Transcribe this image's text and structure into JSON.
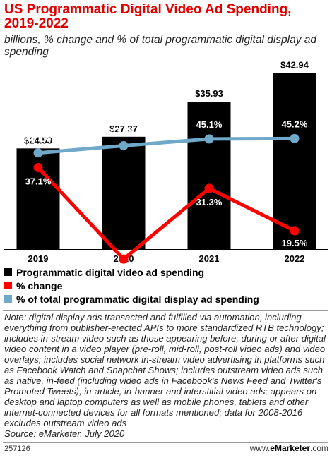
{
  "chart_data": {
    "type": "bar",
    "title": "US Programmatic Digital Video Ad Spending, 2019-2022",
    "subtitle": "billions, % change and % of total programmatic digital display ad spending",
    "categories": [
      "2019",
      "2020",
      "2021",
      "2022"
    ],
    "series": [
      {
        "name": "Programmatic digital video ad spending",
        "kind": "bar",
        "values": [
          24.53,
          27.37,
          35.93,
          42.94
        ],
        "labels": [
          "$24.53",
          "$27.37",
          "$35.93",
          "$42.94"
        ],
        "color": "#000000"
      },
      {
        "name": "% change",
        "kind": "line",
        "values": [
          37.1,
          11.6,
          31.3,
          19.5
        ],
        "labels": [
          "37.1%",
          "11.6%",
          "31.3%",
          "19.5%"
        ],
        "color": "#ff0000"
      },
      {
        "name": "% of total programmatic digital display ad spending",
        "kind": "line",
        "values": [
          41.2,
          43.2,
          45.1,
          45.2
        ],
        "labels": [
          "41.2%",
          "43.2%",
          "45.1%",
          "45.2%"
        ],
        "color": "#6fa8c8"
      }
    ],
    "grid": false,
    "legend_position": "bottom"
  },
  "note": "Note: digital display ads transacted and fulfilled via automation, including everything from publisher-erected APIs to more standardized RTB technology; includes in-stream video such as those appearing before, during or after digital video content in a video player (pre-roll, mid-roll, post-roll video ads) and video overlays; includes social network in-stream video advertising in platforms such as Facebook Watch and Snapchat Shows; includes outstream video ads such as native, in-feed (including video ads in Facebook's News Feed and Twitter's Promoted Tweets), in-article, in-banner and interstitial video ads; appears on desktop and laptop computers as well as mobile phones, tablets and other internet-connected devices for all formats mentioned; data for 2008-2016 excludes outstream video ads",
  "source": "Source: eMarketer, July 2020",
  "footer": {
    "id": "257126",
    "site_prefix": "www.",
    "site_brand": "eMarketer",
    "site_suffix": ".com"
  }
}
